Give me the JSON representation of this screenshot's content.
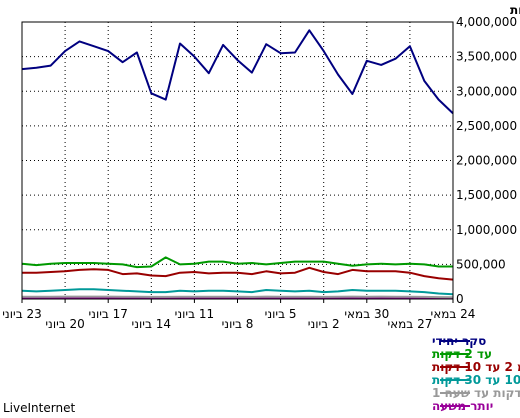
{
  "brand": "LiveInternet",
  "chart_data": {
    "type": "line",
    "ylabel": "כמות",
    "ylim": [
      0,
      4000000
    ],
    "yticks": [
      "4,000,000",
      "3,500,000",
      "3,000,000",
      "2,500,000",
      "2,000,000",
      "1,500,000",
      "1,000,000",
      "500,000",
      "0"
    ],
    "tick_labels_upper": [
      "24 במאי",
      "30 במאי",
      "5 ביוני",
      "11 ביוני",
      "17 ביוני",
      "23 ביוני"
    ],
    "tick_labels_lower": [
      "27 במאי",
      "2 ביוני",
      "8 ביוני",
      "14 ביוני",
      "20 ביוני"
    ],
    "grid": true,
    "legend_position": "bottom",
    "x": [
      "24 במאי",
      "25 במאי",
      "26 במאי",
      "27 במאי",
      "28 במאי",
      "29 במאי",
      "30 במאי",
      "31 במאי",
      "1 ביוני",
      "2 ביוני",
      "3 ביוני",
      "4 ביוני",
      "5 ביוני",
      "6 ביוני",
      "7 ביוני",
      "8 ביוני",
      "9 ביוני",
      "10 ביוני",
      "11 ביוני",
      "12 ביוני",
      "13 ביוני",
      "14 ביוני",
      "15 ביוני",
      "16 ביוני",
      "17 ביוני",
      "18 ביוני",
      "19 ביוני",
      "20 ביוני",
      "21 ביוני",
      "22 ביוני",
      "23 ביוני"
    ],
    "series": [
      {
        "name": "סקר יחידי",
        "color": "#000080",
        "values": [
          2680000,
          2880000,
          3150000,
          3650000,
          3470000,
          3380000,
          3440000,
          2960000,
          3240000,
          3580000,
          3880000,
          3560000,
          3550000,
          3680000,
          3270000,
          3450000,
          3670000,
          3260000,
          3500000,
          3690000,
          2880000,
          2970000,
          3560000,
          3420000,
          3580000,
          3650000,
          3720000,
          3580000,
          3370000,
          3340000,
          3320000
        ]
      },
      {
        "name": "עד 2 דקות",
        "color": "#009900",
        "values": [
          470000,
          470000,
          500000,
          510000,
          500000,
          510000,
          500000,
          480000,
          510000,
          540000,
          540000,
          540000,
          520000,
          500000,
          520000,
          510000,
          540000,
          540000,
          510000,
          500000,
          600000,
          470000,
          460000,
          500000,
          510000,
          520000,
          520000,
          520000,
          510000,
          490000,
          510000
        ]
      },
      {
        "name": "מ 2 עד 10 דקות",
        "color": "#990000",
        "values": [
          280000,
          300000,
          330000,
          380000,
          400000,
          400000,
          400000,
          420000,
          360000,
          390000,
          450000,
          380000,
          370000,
          400000,
          360000,
          380000,
          380000,
          370000,
          390000,
          380000,
          330000,
          340000,
          370000,
          360000,
          420000,
          430000,
          420000,
          400000,
          390000,
          380000,
          380000
        ]
      },
      {
        "name": "מ 10 עד 30 דקות",
        "color": "#009999",
        "values": [
          70000,
          80000,
          100000,
          110000,
          120000,
          120000,
          120000,
          130000,
          110000,
          100000,
          120000,
          110000,
          120000,
          130000,
          100000,
          110000,
          120000,
          120000,
          110000,
          120000,
          100000,
          100000,
          110000,
          120000,
          130000,
          140000,
          140000,
          130000,
          120000,
          110000,
          120000
        ]
      },
      {
        "name": "מ 30 דקות עד שעה 1",
        "color": "#999999",
        "values": [
          25000,
          28000,
          30000,
          32000,
          33000,
          34000,
          33000,
          35000,
          32000,
          30000,
          33000,
          32000,
          33000,
          34000,
          30000,
          32000,
          33000,
          33000,
          32000,
          33000,
          30000,
          30000,
          32000,
          33000,
          34000,
          35000,
          35000,
          34000,
          33000,
          32000,
          33000
        ]
      },
      {
        "name": "יותר משעה",
        "color": "#990099",
        "values": [
          8000,
          9000,
          10000,
          11000,
          11000,
          11000,
          11000,
          12000,
          11000,
          10000,
          11000,
          11000,
          11000,
          12000,
          10000,
          11000,
          11000,
          11000,
          11000,
          11000,
          10000,
          10000,
          11000,
          11000,
          12000,
          12000,
          12000,
          12000,
          11000,
          11000,
          11000
        ]
      }
    ]
  }
}
